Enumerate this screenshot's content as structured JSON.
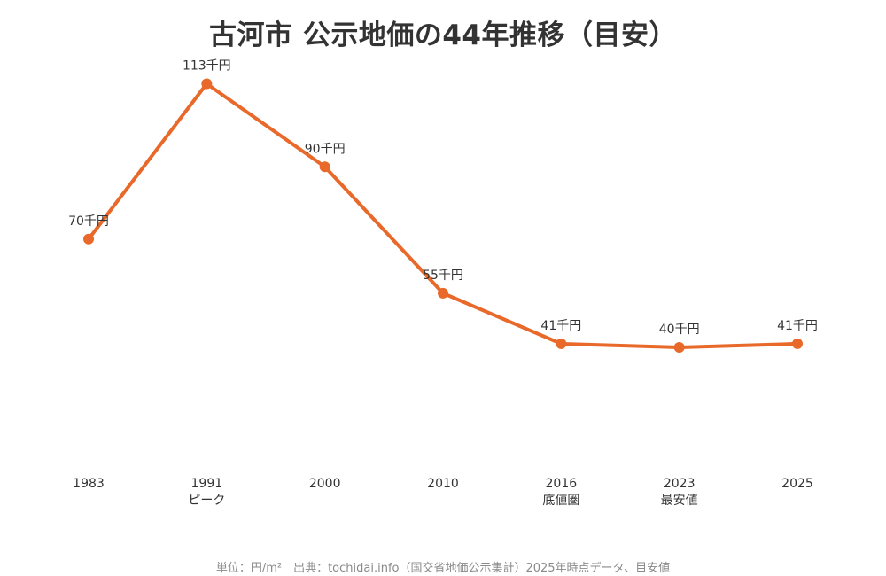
{
  "title": "古河市 公示地価の44年推移（目安）",
  "footer": "単位：円/m²　出典：tochidai.info（国交省地価公示集計）2025年時点データ、目安値",
  "colors": {
    "line": "#e8692a",
    "title": "#333333",
    "footer": "#8a8a8a"
  },
  "chart_data": {
    "type": "line",
    "title": "古河市 公示地価の44年推移（目安）",
    "x": [
      "1983",
      "1991",
      "2000",
      "2010",
      "2016",
      "2023",
      "2025"
    ],
    "values": [
      70,
      113,
      90,
      55,
      41,
      40,
      41
    ],
    "data_labels": [
      "70千円",
      "113千円",
      "90千円",
      "55千円",
      "41千円",
      "40千円",
      "41千円"
    ],
    "x_sublabels": [
      "",
      "ピーク",
      "",
      "",
      "底値圏",
      "最安値",
      ""
    ],
    "unit": "千円",
    "ylim": [
      0,
      120
    ],
    "grid": false,
    "legend": "none"
  }
}
